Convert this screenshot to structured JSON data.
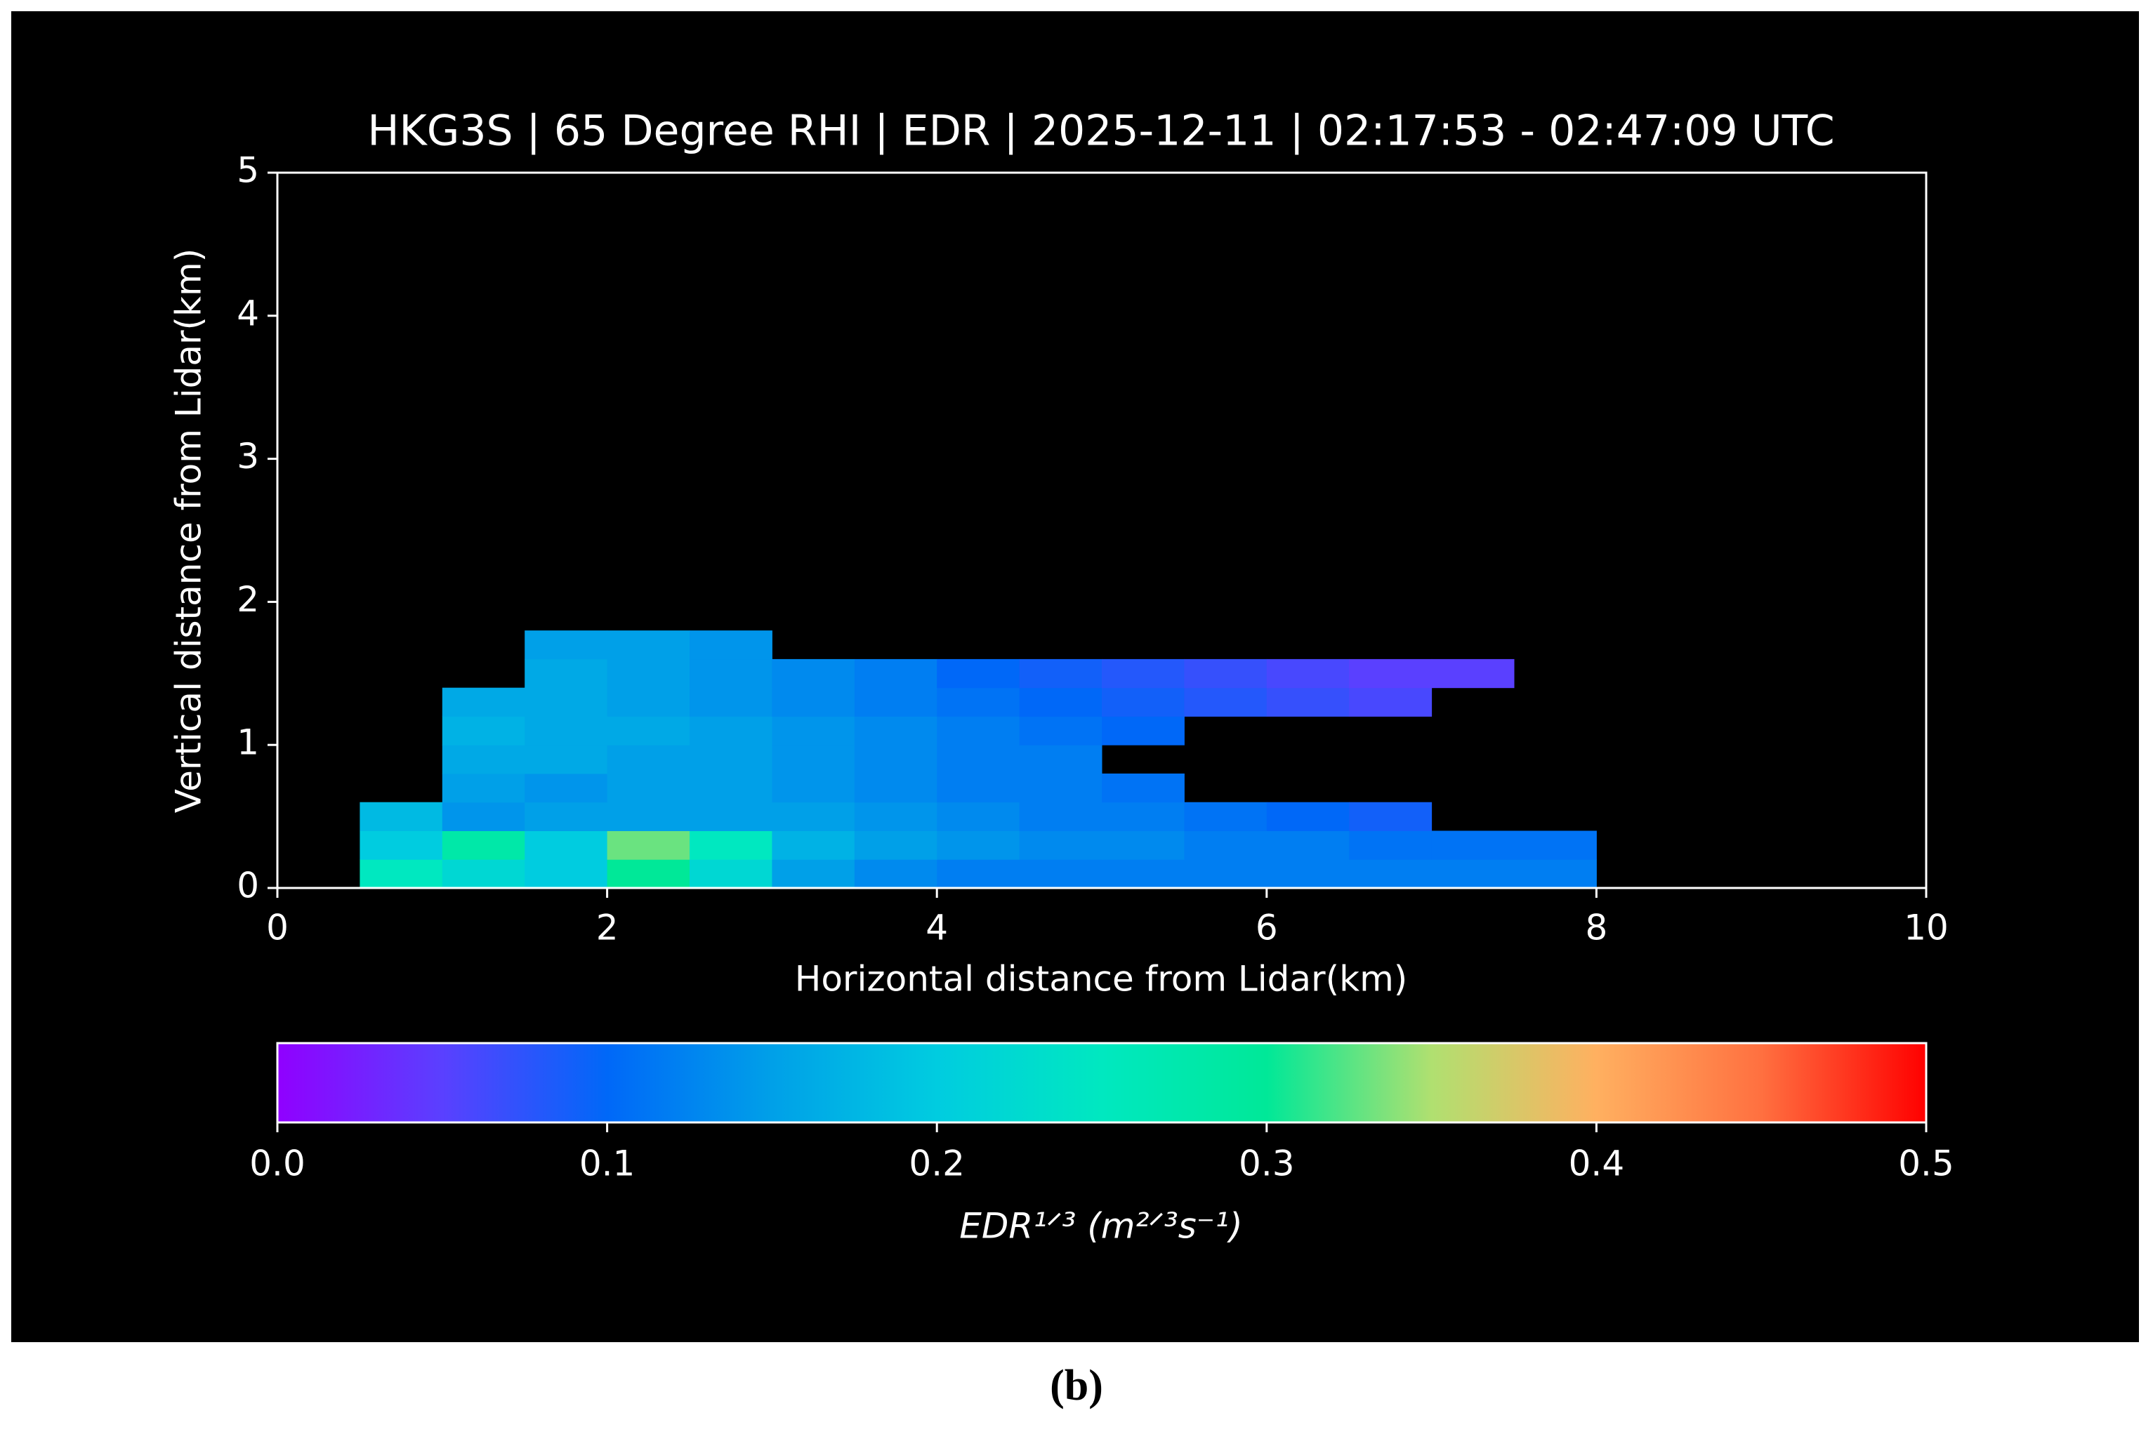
{
  "caption": "(b)",
  "chart_data": {
    "type": "heatmap",
    "title": "HKG3S | 65 Degree RHI | EDR | 2025-12-11 | 02:17:53 - 02:47:09 UTC",
    "xlabel": "Horizontal distance from Lidar(km)",
    "ylabel": "Vertical distance from Lidar(km)",
    "xlim": [
      0,
      10
    ],
    "ylim": [
      0,
      5
    ],
    "xticks": [
      0,
      2,
      4,
      6,
      8,
      10
    ],
    "yticks": [
      0,
      1,
      2,
      3,
      4,
      5
    ],
    "x_edges": [
      0.5,
      1.0,
      1.5,
      2.0,
      2.5,
      3.0,
      3.5,
      4.0,
      4.5,
      5.0,
      5.5,
      6.0,
      6.5,
      7.0,
      7.5,
      8.0
    ],
    "y_edges": [
      0,
      0.2,
      0.4,
      0.6,
      0.8,
      1.0,
      1.2,
      1.4,
      1.6,
      1.8
    ],
    "values": [
      [
        0.25,
        0.22,
        0.2,
        0.3,
        0.22,
        0.15,
        0.13,
        0.12,
        0.12,
        0.12,
        0.12,
        0.12,
        0.12,
        0.12,
        0.12
      ],
      [
        0.2,
        0.28,
        0.2,
        0.33,
        0.25,
        0.17,
        0.15,
        0.14,
        0.13,
        0.13,
        0.12,
        0.12,
        0.11,
        0.11,
        0.11
      ],
      [
        0.18,
        0.14,
        0.15,
        0.15,
        0.15,
        0.15,
        0.14,
        0.13,
        0.12,
        0.12,
        0.11,
        0.1,
        0.09,
        null,
        null
      ],
      [
        null,
        0.15,
        0.14,
        0.15,
        0.15,
        0.14,
        0.13,
        0.12,
        0.12,
        0.11,
        null,
        null,
        null,
        null,
        null
      ],
      [
        null,
        0.16,
        0.16,
        0.15,
        0.15,
        0.14,
        0.13,
        0.12,
        0.12,
        null,
        null,
        null,
        null,
        null,
        null
      ],
      [
        null,
        0.17,
        0.16,
        0.16,
        0.15,
        0.14,
        0.13,
        0.12,
        0.11,
        0.1,
        null,
        null,
        null,
        null,
        null
      ],
      [
        null,
        0.16,
        0.16,
        0.15,
        0.14,
        0.13,
        0.12,
        0.11,
        0.1,
        0.09,
        0.08,
        0.07,
        0.06,
        null,
        null
      ],
      [
        null,
        null,
        0.16,
        0.15,
        0.14,
        0.13,
        0.12,
        0.1,
        0.09,
        0.08,
        0.07,
        0.06,
        0.05,
        0.05,
        null
      ],
      [
        null,
        null,
        0.15,
        0.15,
        0.14,
        null,
        null,
        null,
        null,
        null,
        null,
        null,
        null,
        null,
        null
      ]
    ],
    "colorbar": {
      "label": "EDR¹ᐟ³ (m²ᐟ³s⁻¹)",
      "clim": [
        0,
        0.5
      ],
      "ticks": [
        {
          "value": 0,
          "label": "0.0"
        },
        0.1,
        0.2,
        0.3,
        0.4,
        0.5
      ],
      "colormap": [
        "#9000ff",
        "#5a40ff",
        "#0068f8",
        "#00a0e8",
        "#00cce0",
        "#00e8c0",
        "#00e898",
        "#b0e070",
        "#ffb060",
        "#ff7040",
        "#ff0000"
      ]
    }
  }
}
